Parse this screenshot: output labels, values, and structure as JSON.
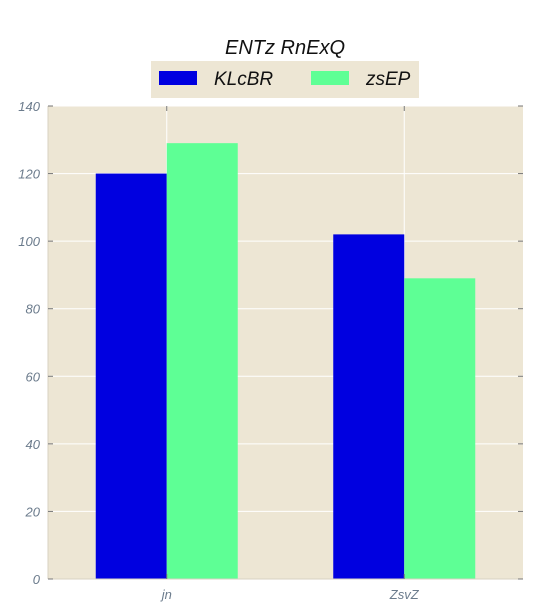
{
  "chart_data": {
    "type": "bar",
    "title": "ENTz RnExQ",
    "categories": [
      "jn",
      "ZsvZ"
    ],
    "series": [
      {
        "name": "KLcBR",
        "values": [
          120,
          102
        ],
        "color": "#0000e0"
      },
      {
        "name": "zsEP",
        "values": [
          129,
          89
        ],
        "color": "#5eff95"
      }
    ],
    "xlabel": "",
    "ylabel": "",
    "ylim": [
      0,
      140
    ],
    "yticks": [
      0,
      20,
      40,
      60,
      80,
      100,
      120,
      140
    ],
    "grid": true,
    "legend_position": "top-center",
    "plot_background": "#ede6d4",
    "grid_color": "#ffffff"
  }
}
